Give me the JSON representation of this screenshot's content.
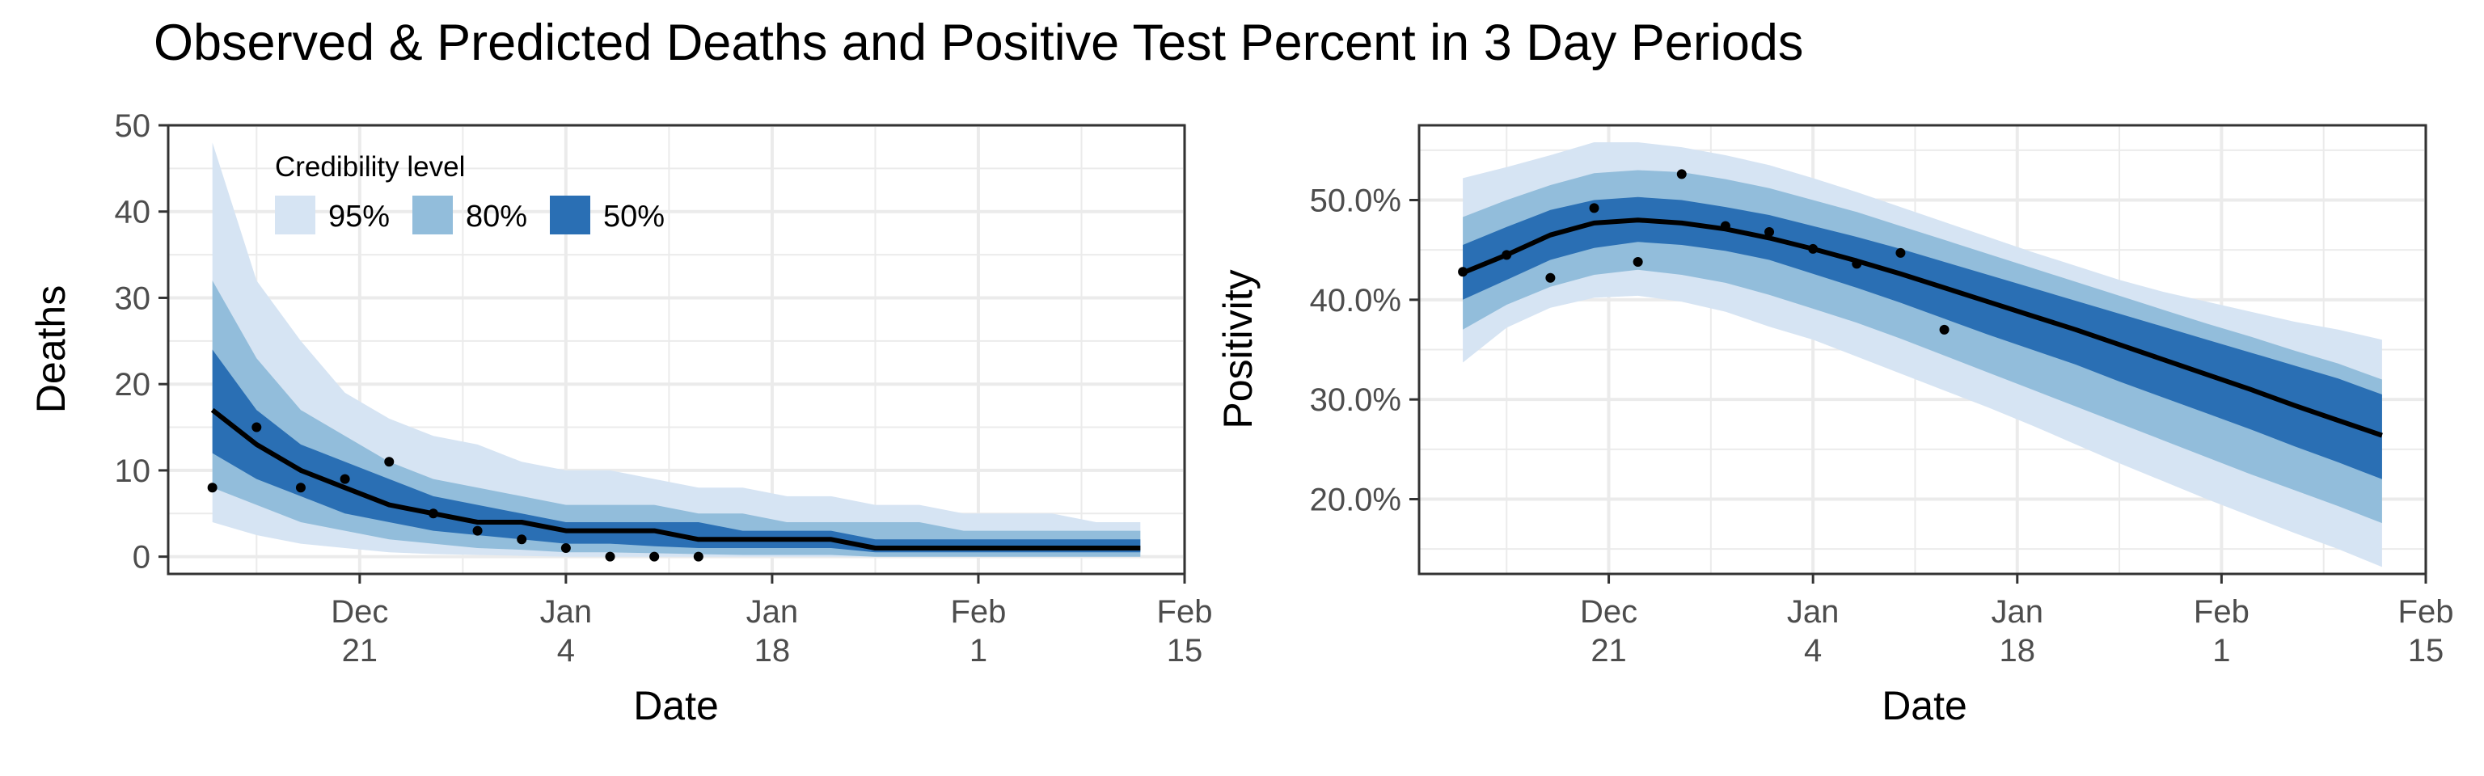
{
  "title": "Observed & Predicted Deaths and Positive Test Percent in 3 Day Periods",
  "colors": {
    "band95": "#d6e4f3",
    "band80": "#92bddb",
    "band50": "#2a6fb4",
    "median": "#000000",
    "points": "#000000",
    "grid": "#ebebeb"
  },
  "legend": {
    "title": "Credibility level",
    "items": [
      {
        "label": "95%",
        "color": "#d6e4f3"
      },
      {
        "label": "80%",
        "color": "#92bddb"
      },
      {
        "label": "50%",
        "color": "#2a6fb4"
      }
    ]
  },
  "chart_data": [
    {
      "type": "area",
      "xlabel": "Date",
      "ylabel": "Deaths",
      "xlim": [
        "2020-12-08",
        "2021-02-15"
      ],
      "ylim": [
        -2,
        50
      ],
      "grid": true,
      "legend_position": "top-left",
      "x_ticks": [
        {
          "value": "2020-12-21",
          "line1": "Dec",
          "line2": "21"
        },
        {
          "value": "2021-01-04",
          "line1": "Jan",
          "line2": "4"
        },
        {
          "value": "2021-01-18",
          "line1": "Jan",
          "line2": "18"
        },
        {
          "value": "2021-02-01",
          "line1": "Feb",
          "line2": "1"
        },
        {
          "value": "2021-02-15",
          "line1": "Feb",
          "line2": "15"
        }
      ],
      "y_ticks": [
        {
          "value": 0,
          "label": "0"
        },
        {
          "value": 10,
          "label": "10"
        },
        {
          "value": 20,
          "label": "20"
        },
        {
          "value": 30,
          "label": "30"
        },
        {
          "value": 40,
          "label": "40"
        },
        {
          "value": 50,
          "label": "50"
        }
      ],
      "band_x": [
        "2020-12-11",
        "2020-12-14",
        "2020-12-17",
        "2020-12-20",
        "2020-12-23",
        "2020-12-26",
        "2020-12-29",
        "2021-01-01",
        "2021-01-04",
        "2021-01-07",
        "2021-01-10",
        "2021-01-13",
        "2021-01-16",
        "2021-01-19",
        "2021-01-22",
        "2021-01-25",
        "2021-01-28",
        "2021-01-31",
        "2021-02-03",
        "2021-02-06",
        "2021-02-09",
        "2021-02-12"
      ],
      "median": [
        17,
        13,
        10,
        8,
        6,
        5,
        4,
        4,
        3,
        3,
        3,
        2,
        2,
        2,
        2,
        1,
        1,
        1,
        1,
        1,
        1,
        1
      ],
      "bands": [
        {
          "level": "95%",
          "lower": [
            4,
            2.5,
            1.5,
            1,
            0.5,
            0.3,
            0.2,
            0.1,
            0,
            0,
            0,
            0,
            0,
            0,
            0,
            0,
            0,
            0,
            0,
            0,
            0,
            0
          ],
          "upper": [
            48,
            32,
            25,
            19,
            16,
            14,
            13,
            11,
            10,
            10,
            9,
            8,
            8,
            7,
            7,
            6,
            6,
            5,
            5,
            5,
            4,
            4
          ]
        },
        {
          "level": "80%",
          "lower": [
            8,
            6,
            4,
            3,
            2,
            1.5,
            1,
            0.8,
            0.5,
            0.5,
            0.4,
            0.3,
            0.2,
            0.2,
            0.2,
            0,
            0,
            0,
            0,
            0,
            0,
            0
          ],
          "upper": [
            32,
            23,
            17,
            14,
            11,
            9,
            8,
            7,
            6,
            6,
            6,
            5,
            5,
            4,
            4,
            4,
            4,
            3,
            3,
            3,
            3,
            3
          ]
        },
        {
          "level": "50%",
          "lower": [
            12,
            9,
            7,
            5,
            4,
            3,
            2.5,
            2,
            1.5,
            1.5,
            1.2,
            1,
            1,
            1,
            1,
            0.5,
            0.5,
            0.5,
            0.5,
            0.5,
            0.5,
            0.5
          ],
          "upper": [
            24,
            17,
            13,
            11,
            9,
            7,
            6,
            5,
            4,
            4,
            4,
            4,
            3,
            3,
            3,
            2,
            2,
            2,
            2,
            2,
            2,
            2
          ]
        }
      ],
      "points": [
        {
          "x": "2020-12-11",
          "y": 8
        },
        {
          "x": "2020-12-14",
          "y": 15
        },
        {
          "x": "2020-12-17",
          "y": 8
        },
        {
          "x": "2020-12-20",
          "y": 9
        },
        {
          "x": "2020-12-23",
          "y": 11
        },
        {
          "x": "2020-12-26",
          "y": 5
        },
        {
          "x": "2020-12-29",
          "y": 3
        },
        {
          "x": "2021-01-01",
          "y": 2
        },
        {
          "x": "2021-01-04",
          "y": 1
        },
        {
          "x": "2021-01-07",
          "y": 0
        },
        {
          "x": "2021-01-10",
          "y": 0
        },
        {
          "x": "2021-01-13",
          "y": 0
        }
      ]
    },
    {
      "type": "area",
      "xlabel": "Date",
      "ylabel": "Positivity",
      "xlim": [
        "2020-12-08",
        "2021-02-15"
      ],
      "ylim": [
        0.125,
        0.575
      ],
      "grid": true,
      "x_ticks": [
        {
          "value": "2020-12-21",
          "line1": "Dec",
          "line2": "21"
        },
        {
          "value": "2021-01-04",
          "line1": "Jan",
          "line2": "4"
        },
        {
          "value": "2021-01-18",
          "line1": "Jan",
          "line2": "18"
        },
        {
          "value": "2021-02-01",
          "line1": "Feb",
          "line2": "1"
        },
        {
          "value": "2021-02-15",
          "line1": "Feb",
          "line2": "15"
        }
      ],
      "y_ticks": [
        {
          "value": 0.2,
          "label": "20.0%"
        },
        {
          "value": 0.3,
          "label": "30.0%"
        },
        {
          "value": 0.4,
          "label": "40.0%"
        },
        {
          "value": 0.5,
          "label": "50.0%"
        }
      ],
      "band_x": [
        "2020-12-11",
        "2020-12-14",
        "2020-12-17",
        "2020-12-20",
        "2020-12-23",
        "2020-12-26",
        "2020-12-29",
        "2021-01-01",
        "2021-01-04",
        "2021-01-07",
        "2021-01-10",
        "2021-01-13",
        "2021-01-16",
        "2021-01-19",
        "2021-01-22",
        "2021-01-25",
        "2021-01-28",
        "2021-01-31",
        "2021-02-03",
        "2021-02-06",
        "2021-02-09",
        "2021-02-12"
      ],
      "median": [
        0.427,
        0.445,
        0.465,
        0.477,
        0.48,
        0.477,
        0.471,
        0.462,
        0.451,
        0.439,
        0.426,
        0.412,
        0.398,
        0.384,
        0.37,
        0.355,
        0.34,
        0.325,
        0.31,
        0.294,
        0.279,
        0.264
      ],
      "bands": [
        {
          "level": "95%",
          "lower": [
            0.337,
            0.372,
            0.392,
            0.402,
            0.404,
            0.398,
            0.388,
            0.373,
            0.36,
            0.343,
            0.326,
            0.309,
            0.292,
            0.274,
            0.255,
            0.236,
            0.218,
            0.2,
            0.183,
            0.166,
            0.15,
            0.132
          ],
          "upper": [
            0.522,
            0.533,
            0.545,
            0.558,
            0.558,
            0.553,
            0.545,
            0.535,
            0.522,
            0.508,
            0.493,
            0.478,
            0.463,
            0.448,
            0.434,
            0.42,
            0.408,
            0.398,
            0.388,
            0.378,
            0.37,
            0.36
          ]
        },
        {
          "level": "80%",
          "lower": [
            0.37,
            0.395,
            0.413,
            0.425,
            0.43,
            0.425,
            0.417,
            0.405,
            0.391,
            0.377,
            0.361,
            0.344,
            0.327,
            0.31,
            0.293,
            0.276,
            0.259,
            0.242,
            0.225,
            0.209,
            0.193,
            0.176
          ],
          "upper": [
            0.483,
            0.5,
            0.515,
            0.527,
            0.53,
            0.528,
            0.521,
            0.512,
            0.5,
            0.488,
            0.474,
            0.46,
            0.446,
            0.432,
            0.418,
            0.404,
            0.39,
            0.376,
            0.363,
            0.349,
            0.336,
            0.32
          ]
        },
        {
          "level": "50%",
          "lower": [
            0.4,
            0.42,
            0.44,
            0.452,
            0.458,
            0.455,
            0.449,
            0.44,
            0.426,
            0.412,
            0.397,
            0.381,
            0.365,
            0.35,
            0.335,
            0.318,
            0.302,
            0.286,
            0.27,
            0.253,
            0.237,
            0.22
          ],
          "upper": [
            0.455,
            0.473,
            0.49,
            0.5,
            0.503,
            0.5,
            0.493,
            0.485,
            0.474,
            0.463,
            0.451,
            0.438,
            0.425,
            0.412,
            0.399,
            0.386,
            0.373,
            0.36,
            0.347,
            0.334,
            0.321,
            0.305
          ]
        }
      ],
      "points": [
        {
          "x": "2020-12-11",
          "y": 0.428
        },
        {
          "x": "2020-12-14",
          "y": 0.445
        },
        {
          "x": "2020-12-17",
          "y": 0.422
        },
        {
          "x": "2020-12-20",
          "y": 0.492
        },
        {
          "x": "2020-12-23",
          "y": 0.438
        },
        {
          "x": "2020-12-26",
          "y": 0.526
        },
        {
          "x": "2020-12-29",
          "y": 0.474
        },
        {
          "x": "2021-01-01",
          "y": 0.468
        },
        {
          "x": "2021-01-04",
          "y": 0.451
        },
        {
          "x": "2021-01-07",
          "y": 0.436
        },
        {
          "x": "2021-01-10",
          "y": 0.447
        },
        {
          "x": "2021-01-13",
          "y": 0.37
        }
      ]
    }
  ]
}
